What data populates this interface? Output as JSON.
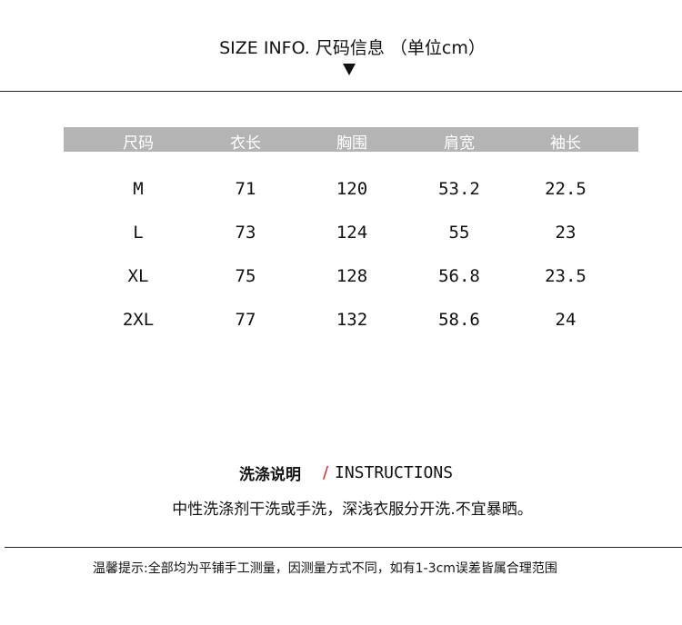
{
  "title": "SIZE INFO. 尺码信息 （单位cm）",
  "table": {
    "headers": [
      "尺码",
      "衣长",
      "胸围",
      "肩宽",
      "袖长"
    ],
    "rows": [
      [
        "M",
        "71",
        "120",
        "53.2",
        "22.5"
      ],
      [
        "L",
        "73",
        "124",
        "55",
        "23"
      ],
      [
        "XL",
        "75",
        "128",
        "56.8",
        "23.5"
      ],
      [
        "2XL",
        "77",
        "132",
        "58.6",
        "24"
      ]
    ],
    "header_bg": "#b4b4b4"
  },
  "instructions": {
    "title_cn": "洗涤说明",
    "slash": "/",
    "title_en": "INSTRUCTIONS",
    "text": "中性洗涤剂干洗或手洗，深浅衣服分开洗.不宜暴晒。",
    "accent": "#e02020"
  },
  "note": "温馨提示:全部均为平铺手工测量，因测量方式不同，如有1-3cm误差皆属合理范围"
}
